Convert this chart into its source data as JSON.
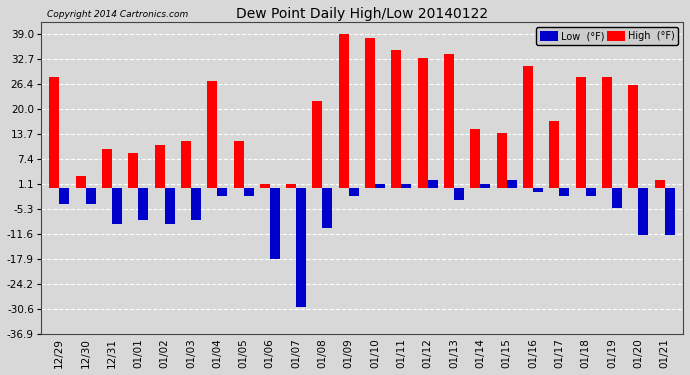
{
  "title": "Dew Point Daily High/Low 20140122",
  "copyright": "Copyright 2014 Cartronics.com",
  "dates": [
    "12/29",
    "12/30",
    "12/31",
    "01/01",
    "01/02",
    "01/03",
    "01/04",
    "01/05",
    "01/06",
    "01/07",
    "01/08",
    "01/09",
    "01/10",
    "01/11",
    "01/12",
    "01/13",
    "01/14",
    "01/15",
    "01/16",
    "01/17",
    "01/18",
    "01/19",
    "01/20",
    "01/21"
  ],
  "highs": [
    28,
    3,
    10,
    9,
    11,
    12,
    27,
    12,
    1,
    1,
    22,
    39,
    38,
    35,
    33,
    34,
    15,
    14,
    31,
    17,
    28,
    28,
    26,
    2
  ],
  "lows": [
    -4,
    -4,
    -9,
    -8,
    -9,
    -8,
    -2,
    -2,
    -18,
    -30,
    -10,
    -2,
    1,
    1,
    2,
    -3,
    1,
    2,
    -1,
    -2,
    -2,
    -5,
    -12,
    -12
  ],
  "yticks": [
    39.0,
    32.7,
    26.4,
    20.0,
    13.7,
    7.4,
    1.1,
    -5.3,
    -11.6,
    -17.9,
    -24.2,
    -30.6,
    -36.9
  ],
  "ymin": -36.9,
  "ymax": 42.0,
  "high_color": "#ff0000",
  "low_color": "#0000cc",
  "bg_color": "#d8d8d8",
  "grid_color": "#ffffff",
  "bar_width": 0.38
}
